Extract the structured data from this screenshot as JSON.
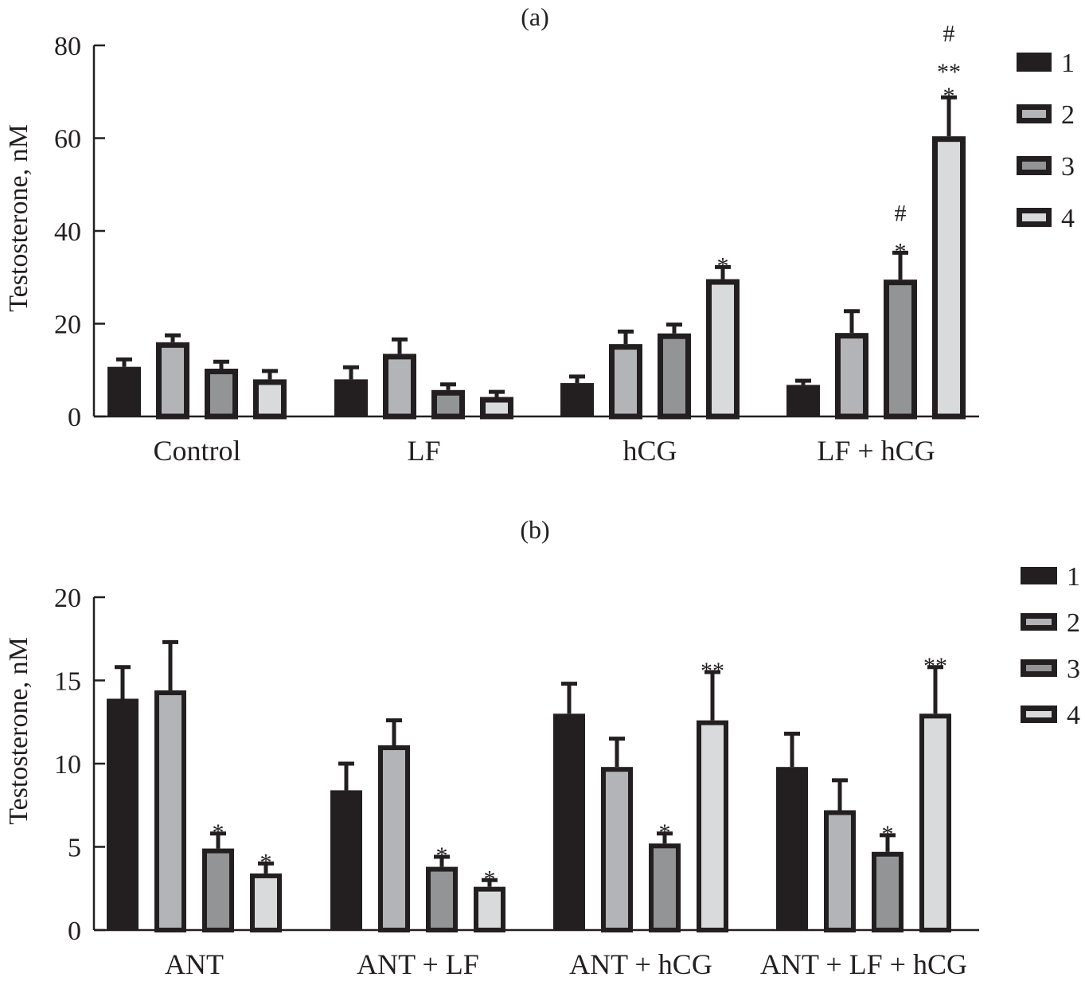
{
  "chart_data": [
    {
      "type": "bar",
      "title": "(a)",
      "xlabel": "",
      "ylabel": "Testosterone, nM",
      "ylim": [
        0,
        80
      ],
      "yticks": [
        0,
        20,
        40,
        60,
        80
      ],
      "grid": false,
      "legend_position": "right",
      "categories": [
        "Control",
        "LF",
        "hCG",
        "LF + hCG"
      ],
      "series": [
        {
          "name": "1",
          "values": [
            10.7,
            8.0,
            7.2,
            6.8
          ],
          "errors": [
            1.6,
            2.6,
            1.4,
            0.9
          ],
          "annotations": [
            "",
            "",
            "",
            ""
          ]
        },
        {
          "name": "2",
          "values": [
            16.0,
            13.5,
            15.6,
            18.0
          ],
          "errors": [
            1.5,
            3.1,
            2.7,
            4.7
          ],
          "annotations": [
            "",
            "",
            "",
            ""
          ]
        },
        {
          "name": "3",
          "values": [
            10.3,
            5.7,
            17.9,
            29.5
          ],
          "errors": [
            1.5,
            1.2,
            1.9,
            5.8
          ],
          "annotations": [
            "",
            "",
            "",
            "#\n*"
          ]
        },
        {
          "name": "4",
          "values": [
            8.0,
            4.2,
            29.6,
            60.4
          ],
          "errors": [
            1.8,
            1.1,
            2.6,
            8.4
          ],
          "annotations": [
            "",
            "",
            "*",
            "#\n**\n*"
          ]
        }
      ]
    },
    {
      "type": "bar",
      "title": "(b)",
      "xlabel": "",
      "ylabel": "Testosterone, nM",
      "ylim": [
        0,
        20
      ],
      "yticks": [
        0,
        5,
        10,
        15,
        20
      ],
      "grid": false,
      "legend_position": "right",
      "categories": [
        "ANT",
        "ANT + LF",
        "ANT + hCG",
        "ANT + LF + hCG"
      ],
      "series": [
        {
          "name": "1",
          "values": [
            13.9,
            8.4,
            13.0,
            9.8
          ],
          "errors": [
            1.9,
            1.6,
            1.8,
            2.0
          ],
          "annotations": [
            "",
            "",
            "",
            ""
          ]
        },
        {
          "name": "2",
          "values": [
            14.4,
            11.1,
            9.8,
            7.2
          ],
          "errors": [
            2.9,
            1.5,
            1.7,
            1.8
          ],
          "annotations": [
            "",
            "",
            "",
            ""
          ]
        },
        {
          "name": "3",
          "values": [
            4.9,
            3.8,
            5.2,
            4.7
          ],
          "errors": [
            0.9,
            0.6,
            0.6,
            1.0
          ],
          "annotations": [
            "*",
            "*",
            "*",
            "*"
          ]
        },
        {
          "name": "4",
          "values": [
            3.4,
            2.6,
            12.6,
            13.0
          ],
          "errors": [
            0.6,
            0.4,
            2.9,
            2.8
          ],
          "annotations": [
            "*",
            "*",
            "**",
            "**"
          ]
        }
      ]
    }
  ],
  "colors": {
    "series": [
      "#231f20",
      "#b3b4b7",
      "#939495",
      "#d9dadb"
    ],
    "outline": "#231f20",
    "axis": "#231f20"
  }
}
